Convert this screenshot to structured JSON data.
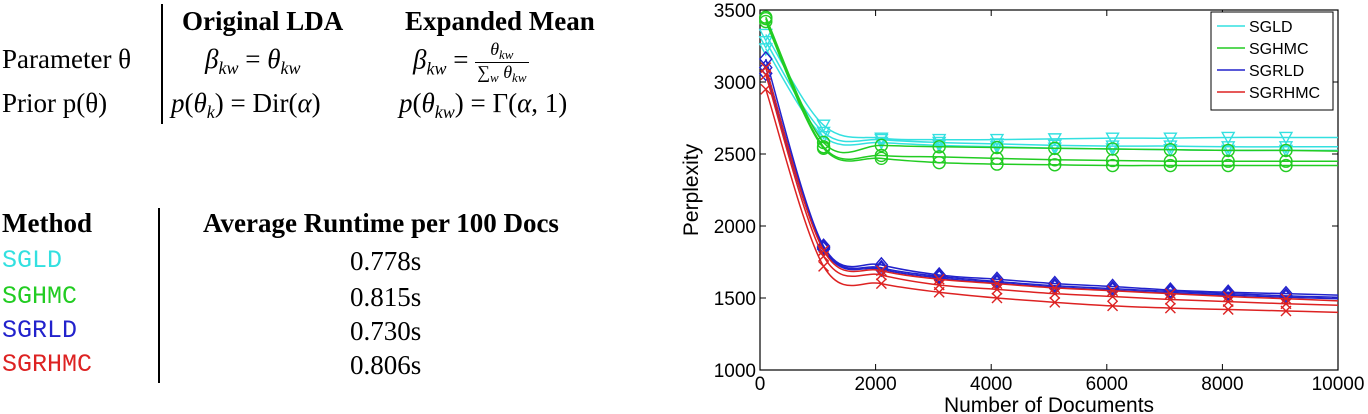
{
  "table1": {
    "col1": "Original LDA",
    "col2": "Expanded Mean",
    "row1_label": "Parameter θ",
    "row2_label": "Prior p(θ)"
  },
  "table2": {
    "header_method": "Method",
    "header_runtime": "Average Runtime per 100 Docs",
    "rows": [
      {
        "method": "SGLD",
        "runtime": "0.778s",
        "color": "#33e0e0"
      },
      {
        "method": "SGHMC",
        "runtime": "0.815s",
        "color": "#22cc22"
      },
      {
        "method": "SGRLD",
        "runtime": "0.730s",
        "color": "#2222cc"
      },
      {
        "method": "SGRHMC",
        "runtime": "0.806s",
        "color": "#dd2222"
      }
    ]
  },
  "chart_data": {
    "type": "line",
    "xlabel": "Number of Documents",
    "ylabel": "Perplexity",
    "xlim": [
      0,
      10000
    ],
    "ylim": [
      1000,
      3500
    ],
    "xticks": [
      0,
      2000,
      4000,
      6000,
      8000,
      10000
    ],
    "yticks": [
      1000,
      1500,
      2000,
      2500,
      3000,
      3500
    ],
    "legend_position": "top-right",
    "x": [
      100,
      1100,
      2100,
      3100,
      4100,
      5100,
      6100,
      7100,
      8100,
      9100,
      10000
    ],
    "series": [
      {
        "name": "SGLD",
        "color": "#33e0e0",
        "marker": "triangle-down",
        "runs": [
          [
            3330,
            2700,
            2610,
            2600,
            2600,
            2605,
            2610,
            2610,
            2615,
            2615,
            2615
          ],
          [
            3280,
            2650,
            2600,
            2580,
            2570,
            2560,
            2555,
            2555,
            2550,
            2550,
            2550
          ],
          [
            3230,
            2620,
            2580,
            2560,
            2550,
            2540,
            2535,
            2530,
            2525,
            2525,
            2525
          ]
        ]
      },
      {
        "name": "SGHMC",
        "color": "#22cc22",
        "marker": "circle",
        "runs": [
          [
            3450,
            2580,
            2560,
            2550,
            2545,
            2540,
            2535,
            2530,
            2525,
            2525,
            2520
          ],
          [
            3440,
            2550,
            2490,
            2480,
            2470,
            2460,
            2455,
            2450,
            2450,
            2450,
            2450
          ],
          [
            3420,
            2540,
            2470,
            2440,
            2430,
            2425,
            2420,
            2420,
            2420,
            2420,
            2420
          ]
        ]
      },
      {
        "name": "SGRLD",
        "color": "#2222cc",
        "marker": "diamond",
        "runs": [
          [
            3160,
            1860,
            1730,
            1660,
            1630,
            1600,
            1580,
            1555,
            1540,
            1530,
            1520
          ],
          [
            3100,
            1850,
            1710,
            1650,
            1615,
            1585,
            1565,
            1545,
            1530,
            1515,
            1505
          ],
          [
            3060,
            1840,
            1700,
            1640,
            1605,
            1575,
            1555,
            1535,
            1520,
            1505,
            1495
          ]
        ]
      },
      {
        "name": "SGRHMC",
        "color": "#dd2222",
        "marker": "x",
        "runs": [
          [
            3100,
            1830,
            1690,
            1630,
            1600,
            1570,
            1550,
            1530,
            1510,
            1495,
            1480
          ],
          [
            3050,
            1790,
            1660,
            1590,
            1560,
            1530,
            1510,
            1490,
            1475,
            1460,
            1450
          ],
          [
            2950,
            1720,
            1600,
            1540,
            1500,
            1470,
            1445,
            1430,
            1420,
            1410,
            1400
          ]
        ]
      }
    ]
  }
}
